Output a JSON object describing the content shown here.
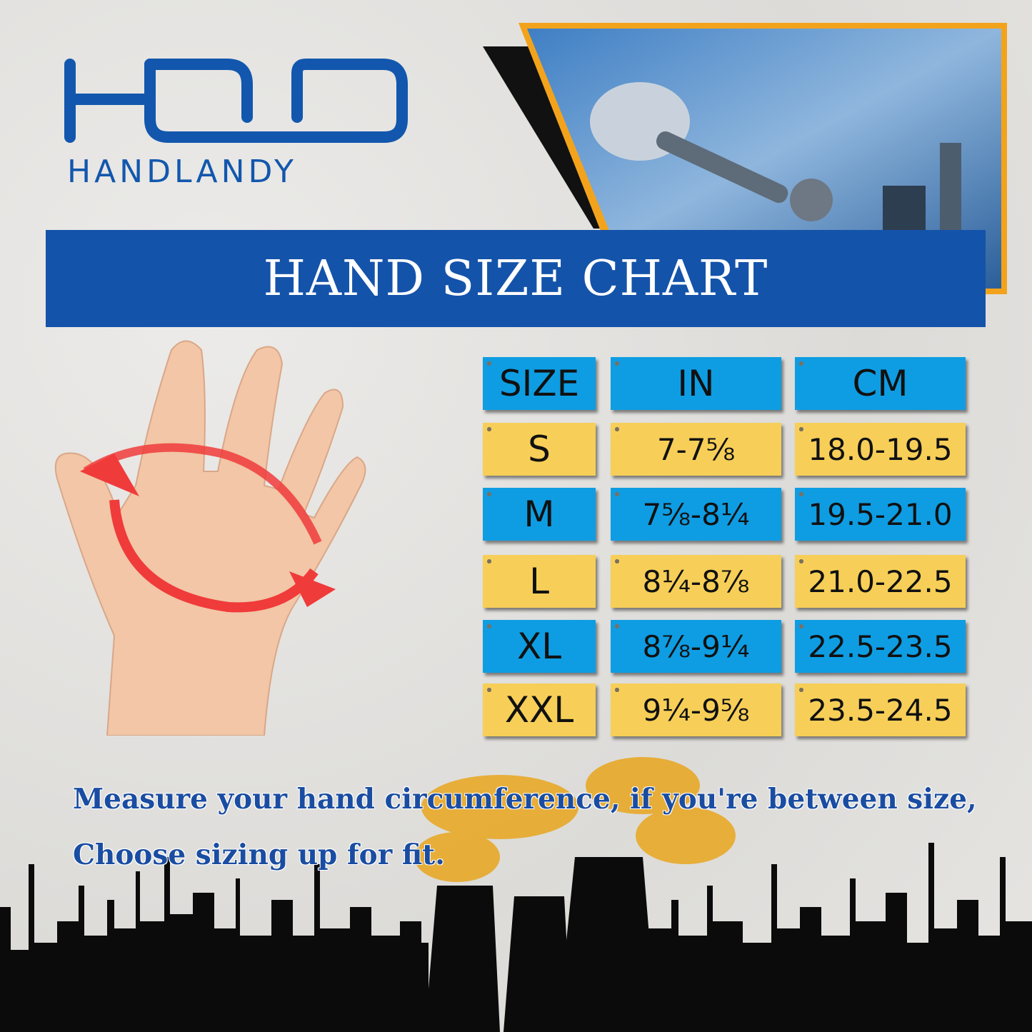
{
  "brand": {
    "name": "HANDLANDY",
    "color": "#1257ad"
  },
  "banner": {
    "title": "HAND SIZE CHART",
    "color": "#1453aa"
  },
  "table": {
    "headers": [
      "SIZE",
      "IN",
      "CM"
    ],
    "rows": [
      {
        "size": "S",
        "in": "7-7⅝",
        "cm": "18.0-19.5"
      },
      {
        "size": "M",
        "in": "7⅝-8¼",
        "cm": "19.5-21.0"
      },
      {
        "size": "L",
        "in": "8¼-8⅞",
        "cm": "21.0-22.5"
      },
      {
        "size": "XL",
        "in": "8⅞-9¼",
        "cm": "22.5-23.5"
      },
      {
        "size": "XXL",
        "in": "9¼-9⅝",
        "cm": "23.5-24.5"
      }
    ],
    "colors": {
      "blue": "#0e9de3",
      "yellow": "#f7cf58"
    }
  },
  "note": {
    "line1": "Measure your hand circumference, if you're between size,",
    "line2": "Choose sizing up for fit."
  }
}
